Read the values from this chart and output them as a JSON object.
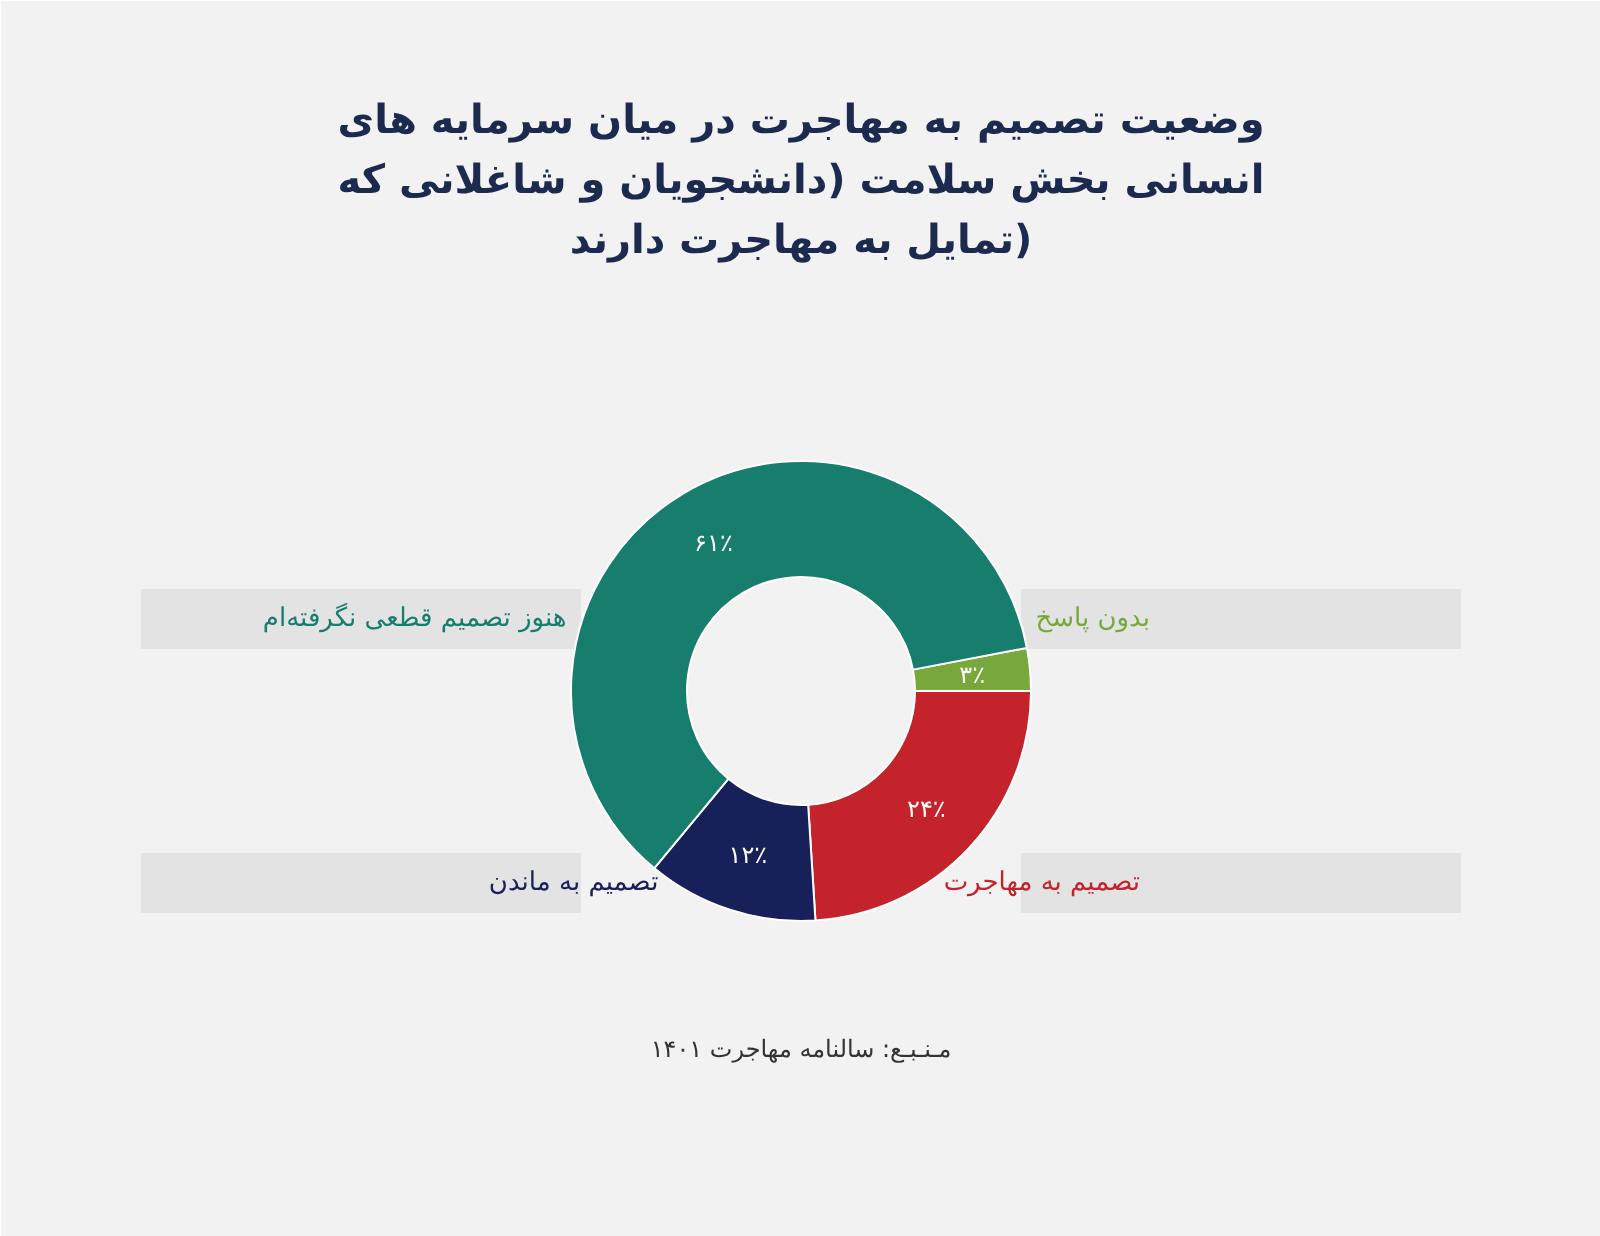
{
  "chart_data": {
    "type": "donut",
    "title": "وضعیت تصمیم به مهاجرت در میان سرمایه های انسانی بخش سلامت (دانشجویان و شاغلانی که تمایل به مهاجرت دارند)",
    "categories": [
      "بدون پاسخ",
      "تصمیم به مهاجرت",
      "تصمیم به ماندن",
      "هنوز تصمیم قطعی نگرفته‌ام"
    ],
    "values": [
      3,
      24,
      12,
      61
    ],
    "value_labels": [
      "۳٪",
      "۲۴٪",
      "۱۲٪",
      "۶۱٪"
    ],
    "colors": [
      "#78a83c",
      "#c4232b",
      "#18205a",
      "#177d6d"
    ],
    "annotations": [
      "مـنـبـع: سالنامه مهاجرت ۱۴۰۱"
    ]
  }
}
